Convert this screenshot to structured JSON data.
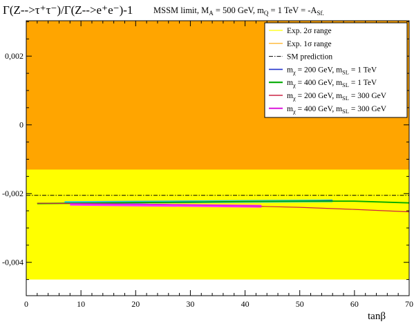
{
  "chart_data": {
    "type": "line",
    "title": "Γ(Z-->τ⁺τ⁻)/Γ(Z-->e⁺e⁻)-1",
    "subtitle": "MSSM limit, M_A = 500 GeV, m_Q = 1 TeV = -A_Sf.",
    "xlabel": "tanβ",
    "ylabel": "",
    "xlim": [
      0,
      70
    ],
    "ylim": [
      -0.00497,
      0.00303
    ],
    "x_ticks": [
      0,
      10,
      20,
      30,
      40,
      50,
      60,
      70
    ],
    "x_tick_labels": [
      "0",
      "10",
      "20",
      "30",
      "40",
      "50",
      "60",
      "70"
    ],
    "y_ticks": [
      0.002,
      0,
      -0.002,
      -0.004
    ],
    "y_tick_labels": [
      "0,002",
      "0",
      "-0,002",
      "-0,004"
    ],
    "grid": false,
    "legend_position": "top-right",
    "bands": [
      {
        "name": "Exp. 2σ range",
        "y": [
          -0.0045,
          0.00303
        ],
        "color": "#ffff00"
      },
      {
        "name": "Exp. 1σ range",
        "y": [
          -0.0013,
          0.00303
        ],
        "color": "#ffa500"
      }
    ],
    "sm_prediction": {
      "name": "SM prediction",
      "y": -0.00205,
      "color": "#000000",
      "style": "dash-dot"
    },
    "series": [
      {
        "name": "m_χ = 200 GeV, m_SL = 1 TeV",
        "color": "#2233cc",
        "width": 1.2,
        "x": [
          2,
          10,
          20,
          30,
          40,
          50,
          56
        ],
        "y": [
          -0.00228,
          -0.00227,
          -0.00226,
          -0.00224,
          -0.00223,
          -0.00222,
          -0.0022
        ]
      },
      {
        "name": "m_χ = 400 GeV, m_SL = 1 TeV",
        "color": "#00aa00",
        "width": 1.8,
        "x": [
          2,
          10,
          20,
          30,
          40,
          50,
          60,
          70
        ],
        "y": [
          -0.00229,
          -0.00228,
          -0.00226,
          -0.00225,
          -0.00223,
          -0.00222,
          -0.00222,
          -0.00227
        ]
      },
      {
        "name": "m_χ = 200 GeV, m_SL = 300 GeV",
        "color": "#cc2244",
        "width": 1.2,
        "x": [
          2,
          10,
          20,
          30,
          40,
          50,
          60,
          70
        ],
        "y": [
          -0.00228,
          -0.00229,
          -0.0023,
          -0.00233,
          -0.00236,
          -0.0024,
          -0.00246,
          -0.00253
        ]
      },
      {
        "name": "m_χ = 400 GeV, m_SL = 300 GeV",
        "color": "#dd22dd",
        "width": 1.8,
        "x": [
          8,
          20,
          30,
          43
        ],
        "y": [
          -0.0023,
          -0.00231,
          -0.00233,
          -0.00236
        ]
      }
    ],
    "highlights": [
      {
        "x": [
          7,
          56
        ],
        "y": [
          -0.00226,
          -0.00221
        ],
        "color": "#33cccc",
        "width": 4
      },
      {
        "x": [
          8,
          43
        ],
        "y": [
          -0.00231,
          -0.00237
        ],
        "color": "#ff33ff",
        "width": 4
      }
    ],
    "legend_labels": [
      {
        "text": "Exp. 2",
        "greek": "σ",
        "after": " range",
        "sub1": "",
        "mid": "",
        "sub2": ""
      },
      {
        "text": "Exp. 1",
        "greek": "σ",
        "after": " range",
        "sub1": "",
        "mid": "",
        "sub2": ""
      },
      {
        "text": "SM prediction",
        "greek": "",
        "after": "",
        "sub1": "",
        "mid": "",
        "sub2": ""
      },
      {
        "text": "m",
        "sub1": "χ",
        "mid": " = 200 GeV, m",
        "sub2": "SL",
        "after": " = 1 TeV",
        "greek": ""
      },
      {
        "text": "m",
        "sub1": "χ",
        "mid": " = 400 GeV, m",
        "sub2": "SL",
        "after": " = 1 TeV",
        "greek": ""
      },
      {
        "text": "m",
        "sub1": "χ",
        "mid": " = 200 GeV, m",
        "sub2": "SL",
        "after": " = 300 GeV",
        "greek": ""
      },
      {
        "text": "m",
        "sub1": "χ",
        "mid": " = 400 GeV, m",
        "sub2": "SL",
        "after": " = 300 GeV",
        "greek": ""
      }
    ]
  }
}
